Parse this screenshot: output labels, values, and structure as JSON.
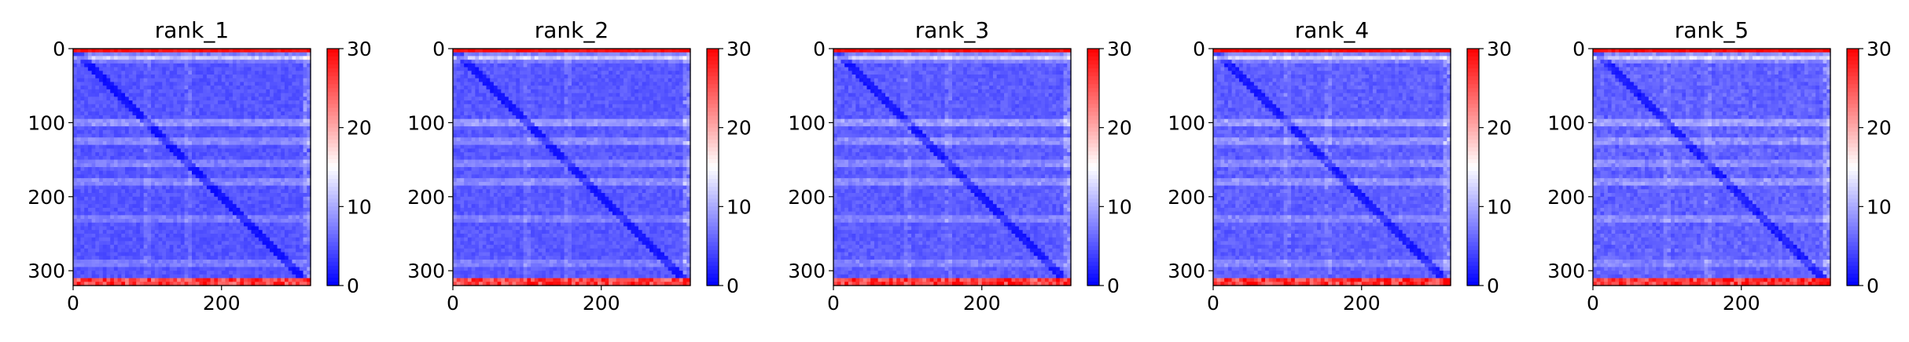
{
  "chart_data": [
    {
      "type": "heatmap",
      "title": "rank_1",
      "xlabel": "",
      "ylabel": "",
      "xlim": [
        0,
        320
      ],
      "ylim": [
        320,
        0
      ],
      "x_ticks": [
        0,
        200
      ],
      "y_ticks": [
        0,
        100,
        200,
        300
      ],
      "colorbar": {
        "range": [
          0,
          30
        ],
        "ticks": [
          0,
          10,
          20,
          30
        ],
        "colormap": "bwr"
      },
      "pattern": "predicted aligned error matrix: mostly low (blue, ~0-5), low diagonal, pale horizontal bands near rows ~12, 100, 125, 155, 180, 230, 290; high (red, ~30) at top row 0 and bottom rows ~310-320"
    },
    {
      "type": "heatmap",
      "title": "rank_2",
      "xlabel": "",
      "ylabel": "",
      "xlim": [
        0,
        320
      ],
      "ylim": [
        320,
        0
      ],
      "x_ticks": [
        0,
        200
      ],
      "y_ticks": [
        0,
        100,
        200,
        300
      ],
      "colorbar": {
        "range": [
          0,
          30
        ],
        "ticks": [
          0,
          10,
          20,
          30
        ],
        "colormap": "bwr"
      },
      "pattern": "same structure as rank_1"
    },
    {
      "type": "heatmap",
      "title": "rank_3",
      "xlabel": "",
      "ylabel": "",
      "xlim": [
        0,
        320
      ],
      "ylim": [
        320,
        0
      ],
      "x_ticks": [
        0,
        200
      ],
      "y_ticks": [
        0,
        100,
        200,
        300
      ],
      "colorbar": {
        "range": [
          0,
          30
        ],
        "ticks": [
          0,
          10,
          20,
          30
        ],
        "colormap": "bwr"
      },
      "pattern": "same structure as rank_1"
    },
    {
      "type": "heatmap",
      "title": "rank_4",
      "xlabel": "",
      "ylabel": "",
      "xlim": [
        0,
        320
      ],
      "ylim": [
        320,
        0
      ],
      "x_ticks": [
        0,
        200
      ],
      "y_ticks": [
        0,
        100,
        200,
        300
      ],
      "colorbar": {
        "range": [
          0,
          30
        ],
        "ticks": [
          0,
          10,
          20,
          30
        ],
        "colormap": "bwr"
      },
      "pattern": "same structure as rank_1"
    },
    {
      "type": "heatmap",
      "title": "rank_5",
      "xlabel": "",
      "ylabel": "",
      "xlim": [
        0,
        320
      ],
      "ylim": [
        320,
        0
      ],
      "x_ticks": [
        0,
        200
      ],
      "y_ticks": [
        0,
        100,
        200,
        300
      ],
      "colorbar": {
        "range": [
          0,
          30
        ],
        "ticks": [
          0,
          10,
          20,
          30
        ],
        "colormap": "bwr"
      },
      "pattern": "same structure as rank_1"
    }
  ],
  "colors": {
    "low": "#0000ff",
    "mid": "#ffffff",
    "high": "#ff0000"
  }
}
